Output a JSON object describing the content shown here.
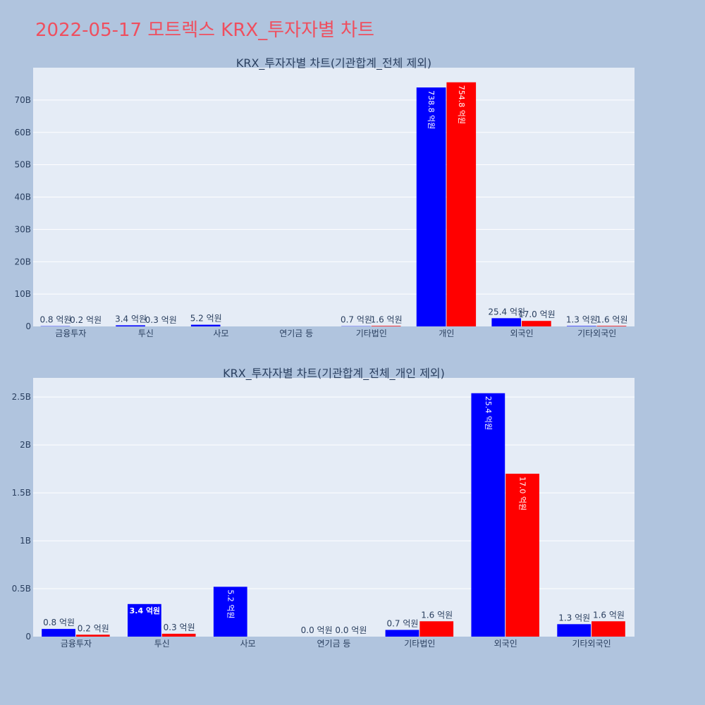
{
  "title": "2022-05-17 모트렉스 KRX_투자자별 차트",
  "colors": {
    "buy": "#0000ff",
    "sell": "#ff0000",
    "plot_bg": "#e5ecf6",
    "page_bg": "#b0c4de",
    "title": "#ef4f5f"
  },
  "chart_data": [
    {
      "type": "bar",
      "title": "KRX_투자자별 차트(기관합계_전체 제외)",
      "categories": [
        "금융투자",
        "투신",
        "사모",
        "연기금 등",
        "기타법인",
        "개인",
        "외국인",
        "기타외국인"
      ],
      "ylim": [
        0,
        80000000000
      ],
      "yticks": [
        0,
        10000000000,
        20000000000,
        30000000000,
        40000000000,
        50000000000,
        60000000000,
        70000000000
      ],
      "ytick_labels": [
        "0",
        "10B",
        "20B",
        "30B",
        "40B",
        "50B",
        "60B",
        "70B"
      ],
      "series": [
        {
          "color": "#0000ff",
          "values": [
            80000000,
            340000000,
            520000000,
            null,
            70000000,
            73880000000,
            2540000000,
            130000000
          ],
          "labels": [
            "0.8 억원",
            "3.4 억원",
            "5.2 억원",
            null,
            "0.7 억원",
            "738.8 억원",
            "25.4 억원",
            "1.3 억원"
          ]
        },
        {
          "color": "#ff0000",
          "values": [
            20000000,
            30000000,
            null,
            null,
            160000000,
            75480000000,
            1700000000,
            160000000
          ],
          "labels": [
            "0.2 억원",
            "0.3 억원",
            null,
            null,
            "1.6 억원",
            "754.8 억원",
            "17.0 억원",
            "1.6 억원"
          ]
        }
      ]
    },
    {
      "type": "bar",
      "title": "KRX_투자자별 차트(기관합계_전체_개인 제외)",
      "categories": [
        "금융투자",
        "투신",
        "사모",
        "연기금 등",
        "기타법인",
        "외국인",
        "기타외국인"
      ],
      "ylim": [
        0,
        2700000000
      ],
      "yticks": [
        0,
        500000000,
        1000000000,
        1500000000,
        2000000000,
        2500000000
      ],
      "ytick_labels": [
        "0",
        "0.5B",
        "1B",
        "1.5B",
        "2B",
        "2.5B"
      ],
      "series": [
        {
          "color": "#0000ff",
          "values": [
            80000000,
            340000000,
            520000000,
            0,
            70000000,
            2540000000,
            130000000
          ],
          "labels": [
            "0.8 억원",
            "3.4 억원",
            "5.2 억원",
            "0.0 억원",
            "0.7 억원",
            "25.4 억원",
            "1.3 억원"
          ]
        },
        {
          "color": "#ff0000",
          "values": [
            20000000,
            30000000,
            null,
            0,
            160000000,
            1700000000,
            160000000
          ],
          "labels": [
            "0.2 억원",
            "0.3 억원",
            null,
            "0.0 억원",
            "1.6 억원",
            "17.0 억원",
            "1.6 억원"
          ]
        }
      ]
    }
  ]
}
